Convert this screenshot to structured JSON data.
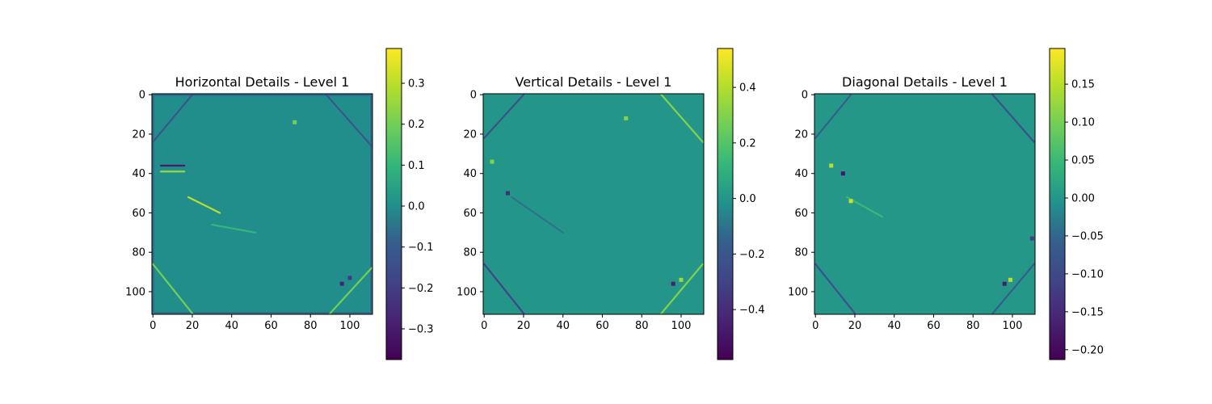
{
  "chart_data": [
    {
      "type": "heatmap",
      "title": "Horizontal Details - Level 1",
      "xticks": [
        0,
        20,
        40,
        60,
        80,
        100
      ],
      "yticks": [
        0,
        20,
        40,
        60,
        80,
        100
      ],
      "xlim": [
        0,
        111
      ],
      "ylim": [
        111,
        0
      ],
      "background_value": 0.0,
      "edge_rows_value": -0.06,
      "colorbar": {
        "colormap": "viridis",
        "vmin": -0.375,
        "vmax": 0.385,
        "ticks": [
          {
            "value": 0.3,
            "label": "0.3"
          },
          {
            "value": 0.2,
            "label": "0.2"
          },
          {
            "value": 0.1,
            "label": "0.1"
          },
          {
            "value": 0.0,
            "label": "0.0"
          },
          {
            "value": -0.1,
            "label": "−0.1"
          },
          {
            "value": -0.2,
            "label": "−0.2"
          },
          {
            "value": -0.3,
            "label": "−0.3"
          }
        ]
      },
      "features": [
        {
          "kind": "diag_line",
          "x1": 0,
          "y1": 24,
          "x2": 20,
          "y2": 0,
          "value": -0.12
        },
        {
          "kind": "diag_line",
          "x1": 88,
          "y1": 0,
          "x2": 111,
          "y2": 26,
          "value": -0.12
        },
        {
          "kind": "diag_line",
          "x1": 0,
          "y1": 86,
          "x2": 20,
          "y2": 111,
          "value": 0.2
        },
        {
          "kind": "diag_line",
          "x1": 90,
          "y1": 111,
          "x2": 111,
          "y2": 88,
          "value": 0.2
        },
        {
          "kind": "diag_line",
          "x1": 18,
          "y1": 52,
          "x2": 34,
          "y2": 60,
          "value": 0.3
        },
        {
          "kind": "diag_line",
          "x1": 30,
          "y1": 66,
          "x2": 52,
          "y2": 70,
          "value": 0.1
        },
        {
          "kind": "diag_line",
          "x1": 4,
          "y1": 36,
          "x2": 16,
          "y2": 36,
          "value": -0.3
        },
        {
          "kind": "diag_line",
          "x1": 4,
          "y1": 39,
          "x2": 16,
          "y2": 39,
          "value": 0.25
        },
        {
          "kind": "blob",
          "x": 72,
          "y": 14,
          "value": 0.2
        },
        {
          "kind": "blob",
          "x": 96,
          "y": 96,
          "value": -0.28
        },
        {
          "kind": "blob",
          "x": 100,
          "y": 93,
          "value": -0.22
        }
      ]
    },
    {
      "type": "heatmap",
      "title": "Vertical Details - Level 1",
      "xticks": [
        0,
        20,
        40,
        60,
        80,
        100
      ],
      "yticks": [
        0,
        20,
        40,
        60,
        80,
        100
      ],
      "xlim": [
        0,
        111
      ],
      "ylim": [
        111,
        0
      ],
      "background_value": 0.0,
      "edge_rows_value": 0.0,
      "colorbar": {
        "colormap": "viridis",
        "vmin": -0.58,
        "vmax": 0.54,
        "ticks": [
          {
            "value": 0.4,
            "label": "0.4"
          },
          {
            "value": 0.2,
            "label": "0.2"
          },
          {
            "value": 0.0,
            "label": "0.0"
          },
          {
            "value": -0.2,
            "label": "−0.2"
          },
          {
            "value": -0.4,
            "label": "−0.4"
          }
        ]
      },
      "features": [
        {
          "kind": "diag_line",
          "x1": 0,
          "y1": 22,
          "x2": 20,
          "y2": 0,
          "value": -0.22
        },
        {
          "kind": "diag_line",
          "x1": 90,
          "y1": 0,
          "x2": 111,
          "y2": 24,
          "value": 0.3
        },
        {
          "kind": "diag_line",
          "x1": 0,
          "y1": 86,
          "x2": 20,
          "y2": 111,
          "value": -0.3
        },
        {
          "kind": "diag_line",
          "x1": 90,
          "y1": 111,
          "x2": 111,
          "y2": 86,
          "value": 0.3
        },
        {
          "kind": "diag_line",
          "x1": 14,
          "y1": 52,
          "x2": 40,
          "y2": 70,
          "value": -0.1
        },
        {
          "kind": "blob",
          "x": 72,
          "y": 12,
          "value": 0.3
        },
        {
          "kind": "blob",
          "x": 12,
          "y": 50,
          "value": -0.4
        },
        {
          "kind": "blob",
          "x": 4,
          "y": 34,
          "value": 0.3
        },
        {
          "kind": "blob",
          "x": 96,
          "y": 96,
          "value": -0.45
        },
        {
          "kind": "blob",
          "x": 100,
          "y": 94,
          "value": 0.35
        }
      ]
    },
    {
      "type": "heatmap",
      "title": "Diagonal Details - Level 1",
      "xticks": [
        0,
        20,
        40,
        60,
        80,
        100
      ],
      "yticks": [
        0,
        20,
        40,
        60,
        80,
        100
      ],
      "xlim": [
        0,
        111
      ],
      "ylim": [
        111,
        0
      ],
      "background_value": 0.0,
      "edge_rows_value": 0.0,
      "colorbar": {
        "colormap": "viridis",
        "vmin": -0.213,
        "vmax": 0.197,
        "ticks": [
          {
            "value": 0.15,
            "label": "0.15"
          },
          {
            "value": 0.1,
            "label": "0.10"
          },
          {
            "value": 0.05,
            "label": "0.05"
          },
          {
            "value": 0.0,
            "label": "0.00"
          },
          {
            "value": -0.05,
            "label": "−0.05"
          },
          {
            "value": -0.1,
            "label": "−0.10"
          },
          {
            "value": -0.15,
            "label": "−0.15"
          },
          {
            "value": -0.2,
            "label": "−0.20"
          }
        ]
      },
      "features": [
        {
          "kind": "diag_line",
          "x1": 0,
          "y1": 22,
          "x2": 18,
          "y2": 0,
          "value": -0.06
        },
        {
          "kind": "diag_line",
          "x1": 90,
          "y1": 0,
          "x2": 111,
          "y2": 24,
          "value": -0.08
        },
        {
          "kind": "diag_line",
          "x1": 0,
          "y1": 86,
          "x2": 20,
          "y2": 111,
          "value": -0.08
        },
        {
          "kind": "diag_line",
          "x1": 90,
          "y1": 111,
          "x2": 111,
          "y2": 86,
          "value": -0.06
        },
        {
          "kind": "diag_line",
          "x1": 16,
          "y1": 52,
          "x2": 34,
          "y2": 62,
          "value": 0.05
        },
        {
          "kind": "blob",
          "x": 8,
          "y": 36,
          "value": 0.15
        },
        {
          "kind": "blob",
          "x": 14,
          "y": 40,
          "value": -0.18
        },
        {
          "kind": "blob",
          "x": 18,
          "y": 54,
          "value": 0.16
        },
        {
          "kind": "blob",
          "x": 96,
          "y": 96,
          "value": -0.17
        },
        {
          "kind": "blob",
          "x": 99,
          "y": 94,
          "value": 0.15
        },
        {
          "kind": "blob",
          "x": 110,
          "y": 73,
          "value": -0.12
        }
      ]
    }
  ]
}
